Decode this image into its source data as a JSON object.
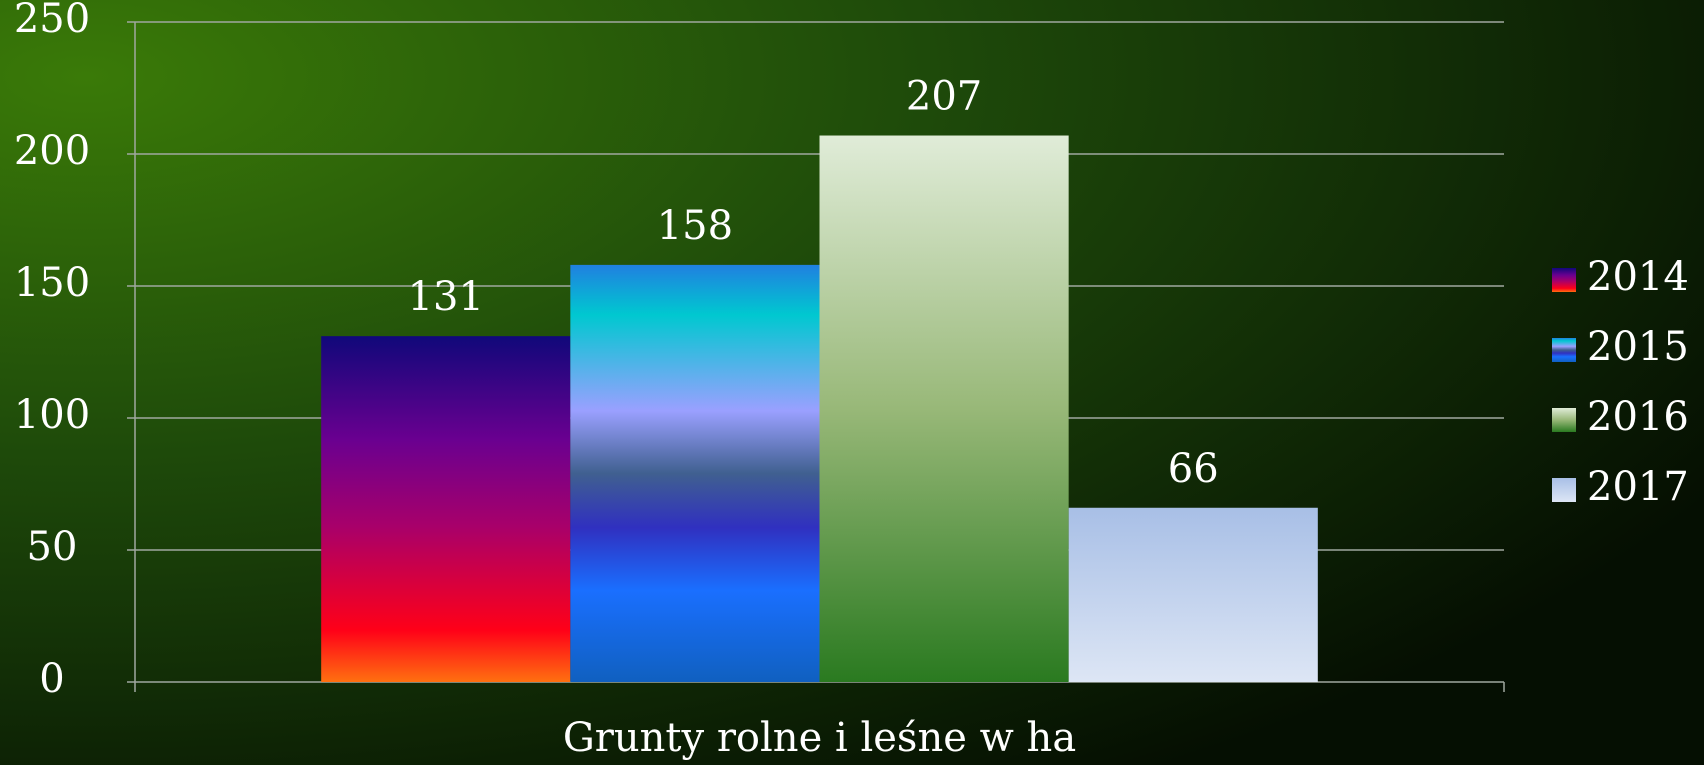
{
  "chart_data": {
    "type": "bar",
    "categories": [
      "Grunty rolne i leśne w ha"
    ],
    "series": [
      {
        "name": "2014",
        "color": "#a8006a",
        "values": [
          131
        ]
      },
      {
        "name": "2015",
        "color": "#1a6fff",
        "values": [
          158
        ]
      },
      {
        "name": "2016",
        "color": "#2a7a20",
        "values": [
          207
        ]
      },
      {
        "name": "2017",
        "color": "#a8bfe6",
        "values": [
          66
        ]
      }
    ],
    "ylim": [
      0,
      250
    ],
    "yticks": [
      0,
      50,
      100,
      150,
      200,
      250
    ],
    "grid": true,
    "legend": "right"
  }
}
